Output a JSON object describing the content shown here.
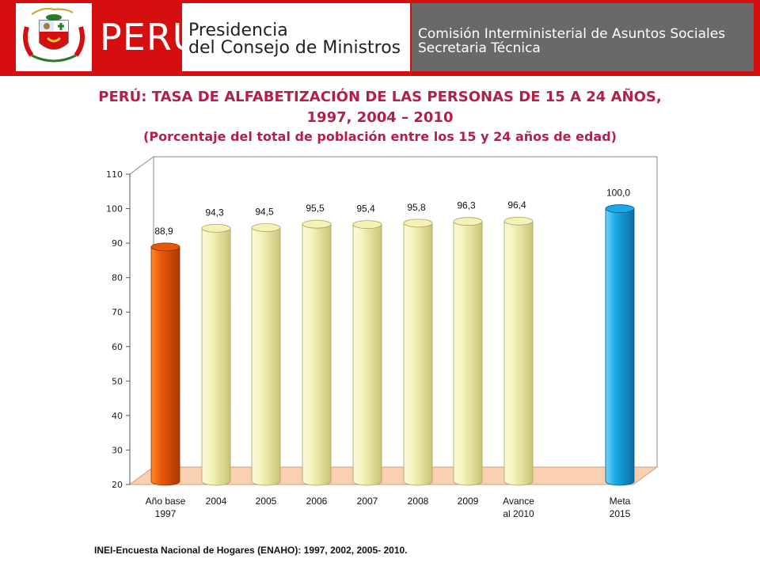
{
  "header": {
    "seal_text": "REPUBLICA DEL PERU",
    "peru_word": "PERÚ",
    "presidencia_line1": "Presidencia",
    "presidencia_line2": "del Consejo de Ministros",
    "commission_line1": "Comisión Interministerial de Asuntos Sociales",
    "commission_line2": "Secretaria Técnica",
    "colors": {
      "banner_red": "#d50f0f",
      "panel_gray": "#696969"
    }
  },
  "chart_data": {
    "type": "bar",
    "title": "PERÚ: TASA DE ALFABETIZACIÓN DE LAS PERSONAS DE 15 A 24 AÑOS,",
    "title_line2": "1997, 2004 – 2010",
    "subtitle": "(Porcentaje del total de población entre los 15 y 24 años de edad)",
    "categories": [
      [
        "Año base",
        "1997"
      ],
      [
        "2004"
      ],
      [
        "2005"
      ],
      [
        "2006"
      ],
      [
        "2007"
      ],
      [
        "2008"
      ],
      [
        "2009"
      ],
      [
        "Avance",
        "al 2010"
      ],
      [
        "Meta",
        "2015"
      ]
    ],
    "values": [
      88.9,
      94.3,
      94.5,
      95.5,
      95.4,
      95.8,
      96.3,
      96.4,
      100.0
    ],
    "value_labels": [
      "88,9",
      "94,3",
      "94,5",
      "95,5",
      "95,4",
      "95,8",
      "96,3",
      "96,4",
      "100,0"
    ],
    "bar_colors": [
      "#e8580a",
      "#f5f2b8",
      "#f5f2b8",
      "#f5f2b8",
      "#f5f2b8",
      "#f5f2b8",
      "#f5f2b8",
      "#f5f2b8",
      "#1aa9e8"
    ],
    "ylim": [
      20,
      110
    ],
    "yticks": [
      20,
      30,
      40,
      50,
      60,
      70,
      80,
      90,
      100,
      110
    ],
    "xlabel": "",
    "ylabel": "",
    "grid": false,
    "floor_color": "#fbd0b0"
  },
  "source_note": "INEI-Encuesta Nacional de Hogares (ENAHO): 1997, 2002, 2005- 2010."
}
